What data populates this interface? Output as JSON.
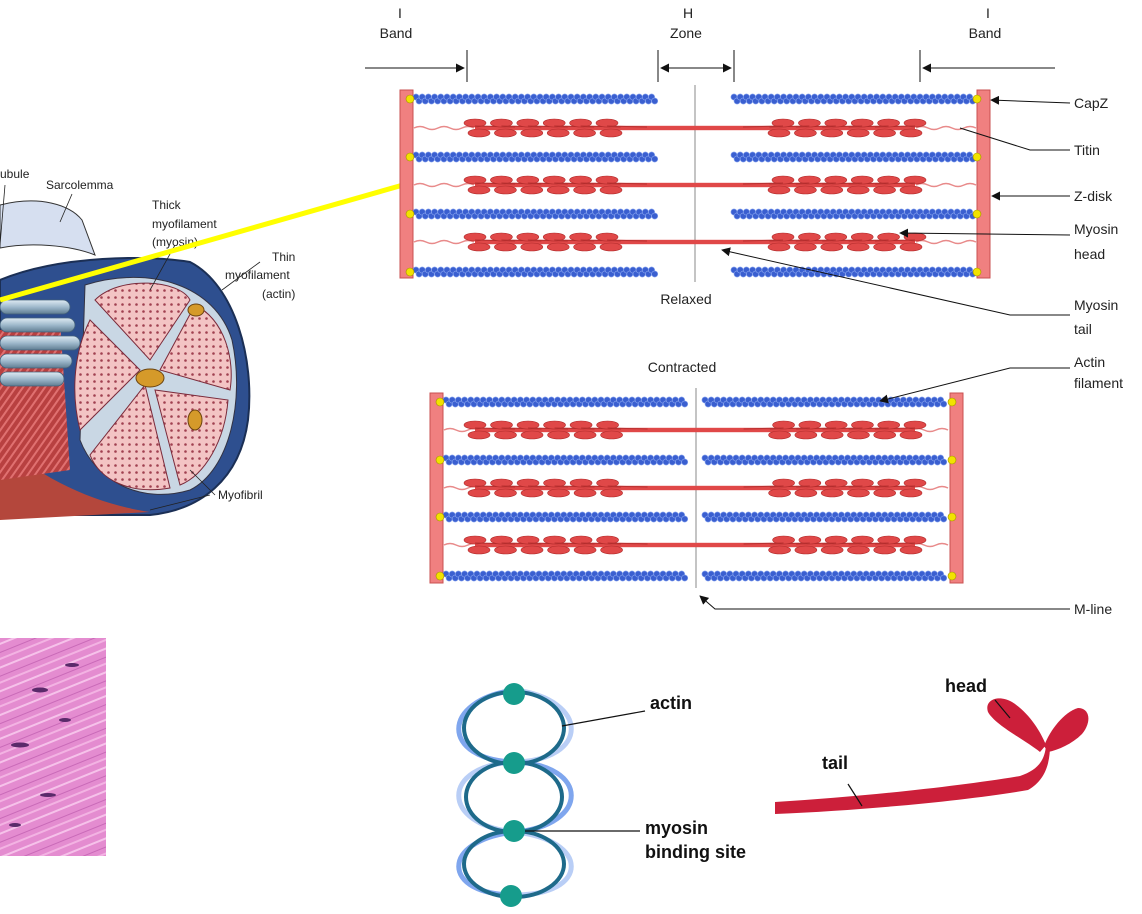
{
  "band_labels": {
    "i_left": [
      "I",
      "Band"
    ],
    "h_zone": [
      "H",
      "Zone"
    ],
    "i_right": [
      "I",
      "Band"
    ]
  },
  "state_labels": {
    "relaxed": "Relaxed",
    "contracted": "Contracted"
  },
  "callouts": {
    "capz": [
      "CapZ"
    ],
    "titin": [
      "Titin"
    ],
    "zdisk": [
      "Z-disk"
    ],
    "myosin_head": [
      "Myosin",
      "head"
    ],
    "myosin_tail": [
      "Myosin",
      "tail"
    ],
    "actin_filament": [
      "Actin",
      "filament"
    ],
    "mline": [
      "M-line"
    ]
  },
  "fiber_labels": {
    "tubule": "ubule",
    "sarcolemma": "Sarcolemma",
    "thick": [
      "Thick",
      "myofilament",
      "(myosin)"
    ],
    "thin": [
      "Thin",
      "myofilament",
      "(actin)"
    ],
    "myofibril": "Myofibril"
  },
  "bottom_labels": {
    "actin": "actin",
    "myosin_binding": [
      "myosin",
      "binding site"
    ],
    "head": "head",
    "tail": "tail"
  },
  "colors": {
    "actin_blue": "#3a5fd0",
    "myosin_red": "#e04848",
    "zdisk_red": "#f08080",
    "capz_yellow": "#f2e200",
    "highlight_yellow": "#ffff00",
    "helix_teal": "#1e6a8a",
    "bead_teal": "#169c8c",
    "tail_crimson": "#cc1f3a",
    "tissue_pink": "#e07ac8"
  }
}
